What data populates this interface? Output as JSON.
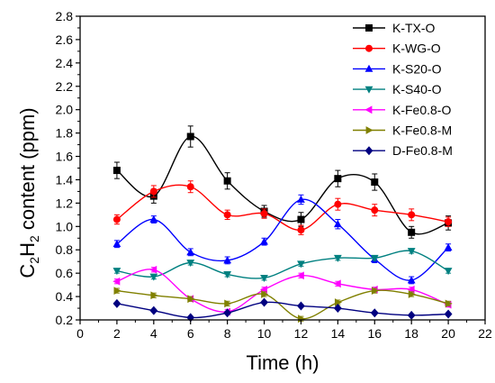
{
  "chart_data": {
    "type": "scatter",
    "title": "",
    "xlabel": "Time (h)",
    "ylabel": {
      "pre": "C",
      "sub1": "2",
      "mid": "H",
      "sub2": "2",
      "post": " content (ppm)"
    },
    "xlim": [
      0,
      22
    ],
    "ylim": [
      0.2,
      2.8
    ],
    "xticks": [
      "0",
      "2",
      "4",
      "6",
      "8",
      "10",
      "12",
      "14",
      "16",
      "18",
      "20",
      "22"
    ],
    "yticks": [
      "0.2",
      "0.4",
      "0.6",
      "0.8",
      "1.0",
      "1.2",
      "1.4",
      "1.6",
      "1.8",
      "2.0",
      "2.2",
      "2.4",
      "2.6",
      "2.8"
    ],
    "grid": false,
    "legend_position": "top-right",
    "x": [
      2,
      4,
      6,
      8,
      10,
      12,
      14,
      16,
      18,
      20
    ],
    "series": [
      {
        "name": "K-TX-O",
        "color": "#000000",
        "marker": "square",
        "values": [
          1.48,
          1.26,
          1.77,
          1.39,
          1.13,
          1.06,
          1.41,
          1.38,
          0.95,
          1.03
        ],
        "errors": [
          0.07,
          0.06,
          0.09,
          0.07,
          0.05,
          0.06,
          0.07,
          0.07,
          0.05,
          0.06
        ]
      },
      {
        "name": "K-WG-O",
        "color": "#ff0000",
        "marker": "circle",
        "values": [
          1.06,
          1.3,
          1.34,
          1.1,
          1.11,
          0.97,
          1.19,
          1.14,
          1.1,
          1.04
        ],
        "errors": [
          0.04,
          0.05,
          0.05,
          0.04,
          0.04,
          0.04,
          0.05,
          0.05,
          0.05,
          0.04
        ]
      },
      {
        "name": "K-S20-O",
        "color": "#0000ff",
        "marker": "triangle-up",
        "values": [
          0.85,
          1.06,
          0.78,
          0.71,
          0.87,
          1.23,
          1.02,
          0.72,
          0.54,
          0.82
        ],
        "errors": [
          0.03,
          0.03,
          0.03,
          0.03,
          0.03,
          0.04,
          0.04,
          0.03,
          0.03,
          0.03
        ]
      },
      {
        "name": "K-S40-O",
        "color": "#008080",
        "marker": "triangle-down",
        "values": [
          0.62,
          0.57,
          0.69,
          0.59,
          0.56,
          0.68,
          0.73,
          0.73,
          0.79,
          0.62
        ],
        "errors": [
          0.02,
          0.02,
          0.02,
          0.02,
          0.02,
          0.02,
          0.02,
          0.02,
          0.02,
          0.02
        ]
      },
      {
        "name": "K-Fe0.8-O",
        "color": "#ff00ff",
        "marker": "triangle-left",
        "values": [
          0.53,
          0.63,
          0.38,
          0.27,
          0.46,
          0.58,
          0.51,
          0.46,
          0.46,
          0.33
        ],
        "errors": [
          0.02,
          0.02,
          0.02,
          0.02,
          0.02,
          0.02,
          0.02,
          0.02,
          0.02,
          0.02
        ]
      },
      {
        "name": "K-Fe0.8-M",
        "color": "#808000",
        "marker": "triangle-right",
        "values": [
          0.45,
          0.41,
          0.38,
          0.34,
          0.42,
          0.21,
          0.35,
          0.45,
          0.42,
          0.34
        ],
        "errors": [
          0.02,
          0.02,
          0.02,
          0.02,
          0.02,
          0.02,
          0.02,
          0.02,
          0.02,
          0.02
        ]
      },
      {
        "name": "D-Fe0.8-M",
        "color": "#000080",
        "marker": "diamond",
        "values": [
          0.34,
          0.28,
          0.22,
          0.26,
          0.35,
          0.32,
          0.3,
          0.26,
          0.24,
          0.25
        ],
        "errors": [
          0.01,
          0.01,
          0.01,
          0.01,
          0.01,
          0.01,
          0.01,
          0.01,
          0.01,
          0.01
        ]
      }
    ]
  }
}
